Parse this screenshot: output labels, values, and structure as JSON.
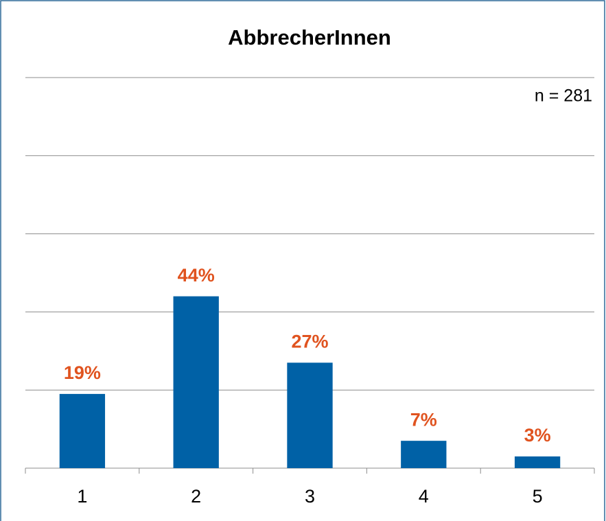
{
  "chart_data": {
    "type": "bar",
    "title": "AbbrecherInnen",
    "annotation": "n = 281",
    "categories": [
      "1",
      "2",
      "3",
      "4",
      "5"
    ],
    "values": [
      19,
      44,
      27,
      7,
      3
    ],
    "value_labels": [
      "19%",
      "44%",
      "27%",
      "7%",
      "3%"
    ],
    "color": "#0061a6",
    "label_color": "#e0531f",
    "ylim": [
      0,
      100
    ],
    "yticks": [
      0,
      20,
      40,
      60,
      80,
      100
    ],
    "grid": true
  }
}
